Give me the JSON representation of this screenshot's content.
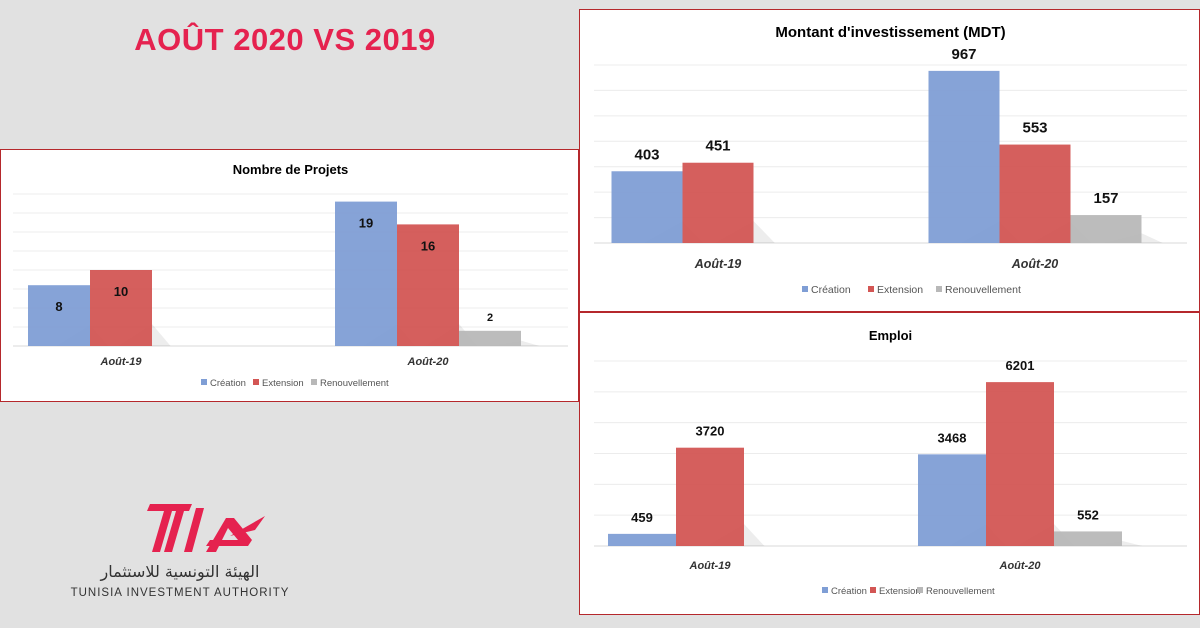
{
  "page": {
    "title": "AOÛT 2020 VS 2019",
    "brand_color": "#e5224f"
  },
  "logo": {
    "mark": "TIA",
    "arabic": "الهيئة التونسية للاستثمار",
    "english": "TUNISIA INVESTMENT AUTHORITY"
  },
  "colors": {
    "creation": "#7f9ed5",
    "extension": "#d35654",
    "renouvellement": "#b8b8b8",
    "border": "#b5282c"
  },
  "chart_data": [
    {
      "id": "projets",
      "type": "bar",
      "title": "Nombre de Projets",
      "categories": [
        "Août-19",
        "Août-20"
      ],
      "series": [
        {
          "name": "Création",
          "values": [
            8,
            19
          ]
        },
        {
          "name": "Extension",
          "values": [
            10,
            16
          ]
        },
        {
          "name": "Renouvellement",
          "values": [
            null,
            2
          ]
        }
      ],
      "ylim": [
        0,
        20
      ],
      "grid": true,
      "legend": "bottom"
    },
    {
      "id": "investissement",
      "type": "bar",
      "title": "Montant d'investissement (MDT)",
      "categories": [
        "Août-19",
        "Août-20"
      ],
      "series": [
        {
          "name": "Création",
          "values": [
            403,
            967
          ]
        },
        {
          "name": "Extension",
          "values": [
            451,
            553
          ]
        },
        {
          "name": "Renouvellement",
          "values": [
            null,
            157
          ]
        }
      ],
      "ylim": [
        0,
        1000
      ],
      "grid": true,
      "legend": "bottom"
    },
    {
      "id": "emploi",
      "type": "bar",
      "title": "Emploi",
      "categories": [
        "Août-19",
        "Août-20"
      ],
      "series": [
        {
          "name": "Création",
          "values": [
            459,
            3468
          ]
        },
        {
          "name": "Extension",
          "values": [
            3720,
            6201
          ]
        },
        {
          "name": "Renouvellement",
          "values": [
            null,
            552
          ]
        }
      ],
      "ylim": [
        0,
        7000
      ],
      "grid": true,
      "legend": "bottom"
    }
  ]
}
